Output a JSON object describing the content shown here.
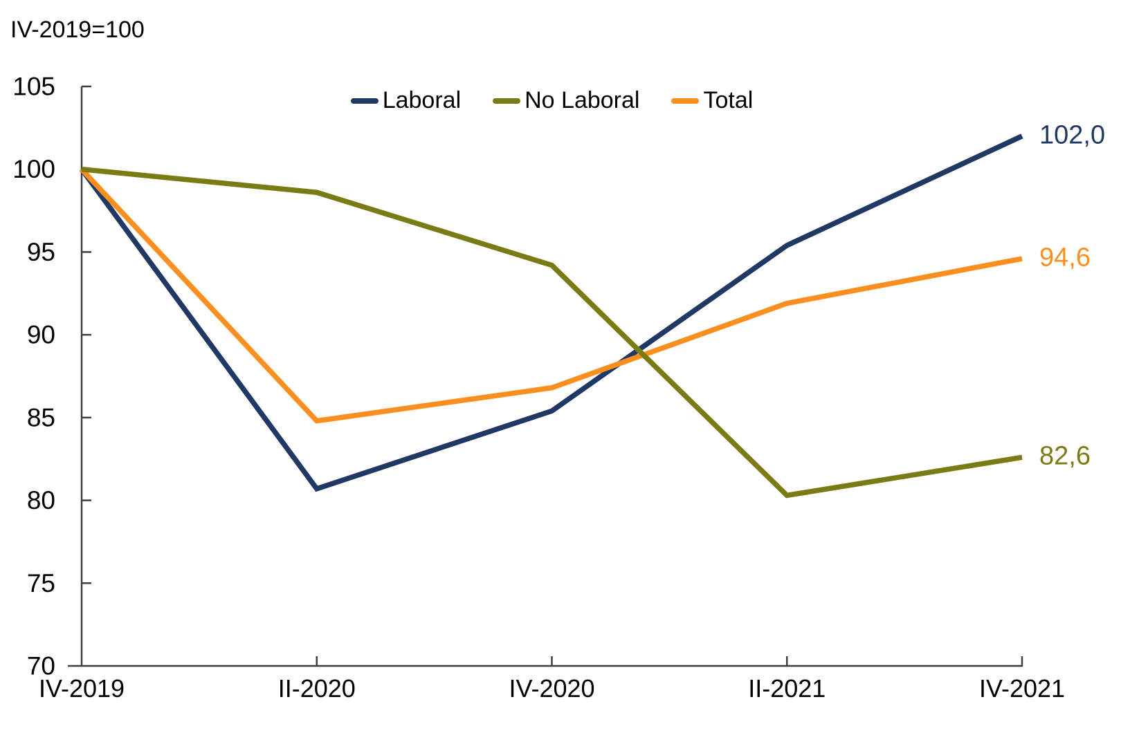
{
  "chart_data": {
    "type": "line",
    "title": "",
    "note": "IV-2019=100",
    "categories": [
      "IV-2019",
      "II-2020",
      "IV-2020",
      "II-2021",
      "IV-2021"
    ],
    "series": [
      {
        "name": "Laboral",
        "color": "#1F3864",
        "values": [
          100,
          80.7,
          85.4,
          95.4,
          102.0
        ],
        "end_label": "102,0"
      },
      {
        "name": "No Laboral",
        "color": "#7A7B15",
        "values": [
          100,
          98.6,
          94.2,
          80.3,
          82.6
        ],
        "end_label": "82,6"
      },
      {
        "name": "Total",
        "color": "#FA8E1E",
        "values": [
          100,
          84.8,
          86.8,
          91.9,
          94.6
        ],
        "end_label": "94,6"
      }
    ],
    "ylim": [
      70,
      105
    ],
    "yticks": [
      70,
      75,
      80,
      85,
      90,
      95,
      100,
      105
    ],
    "grid": false,
    "legend_position": "top-center",
    "draw_order": [
      "Laboral",
      "Total",
      "No Laboral"
    ],
    "axis_color": "#3f3f3f"
  }
}
